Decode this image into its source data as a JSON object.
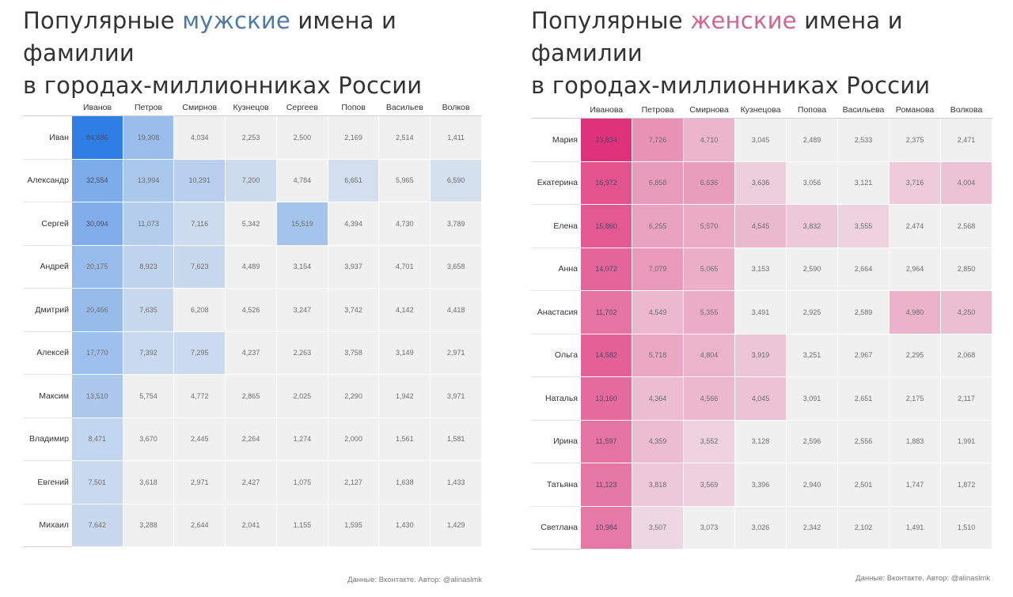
{
  "colors": {
    "male_accent": "#4e79a7",
    "female_accent": "#d1668f",
    "empty_cell": "#f0f0f0",
    "male_max": "#2f7ee6",
    "female_max": "#e0327a"
  },
  "chart_data": [
    {
      "type": "heatmap",
      "title_prefix": "Популярные ",
      "title_accent": "мужские",
      "title_rest": " имена и фамилии",
      "title_line2": "в городах-миллионниках России",
      "columns": [
        "Иванов",
        "Петров",
        "Смирнов",
        "Кузнецов",
        "Сергеев",
        "Попов",
        "Васильев",
        "Волков"
      ],
      "rows": [
        "Иван",
        "Александр",
        "Сергей",
        "Андрей",
        "Дмитрий",
        "Алексей",
        "Максим",
        "Владимир",
        "Евгений",
        "Михаил"
      ],
      "values": [
        [
          84886,
          19308,
          4034,
          2253,
          2500,
          2169,
          2514,
          1411
        ],
        [
          32554,
          13994,
          10291,
          7200,
          4784,
          6651,
          5965,
          6590
        ],
        [
          30094,
          11073,
          7116,
          5342,
          15519,
          4394,
          4730,
          3789
        ],
        [
          20175,
          8923,
          7623,
          4489,
          3154,
          3937,
          4701,
          3658
        ],
        [
          20466,
          7635,
          6208,
          4526,
          3247,
          3742,
          4142,
          4418
        ],
        [
          17770,
          7392,
          7295,
          4237,
          2263,
          3758,
          3149,
          2971
        ],
        [
          13510,
          5754,
          4772,
          2865,
          2025,
          2290,
          1942,
          3971
        ],
        [
          8471,
          3670,
          2445,
          2264,
          1274,
          2000,
          1561,
          1581
        ],
        [
          7501,
          3618,
          2971,
          2427,
          1075,
          2127,
          1638,
          1433
        ],
        [
          7642,
          3288,
          2644,
          2041,
          1155,
          1595,
          1430,
          1429
        ]
      ],
      "display": [
        [
          "84,886",
          "19,308",
          "4,034",
          "2,253",
          "2,500",
          "2,169",
          "2,514",
          "1,411"
        ],
        [
          "32,554",
          "13,994",
          "10,291",
          "7,200",
          "4,784",
          "6,651",
          "5,965",
          "6,590"
        ],
        [
          "30,094",
          "11,073",
          "7,116",
          "5,342",
          "15,519",
          "4,394",
          "4,730",
          "3,789"
        ],
        [
          "20,175",
          "8,923",
          "7,623",
          "4,489",
          "3,154",
          "3,937",
          "4,701",
          "3,658"
        ],
        [
          "20,466",
          "7,635",
          "6,208",
          "4,526",
          "3,247",
          "3,742",
          "4,142",
          "4,418"
        ],
        [
          "17,770",
          "7,392",
          "7,295",
          "4,237",
          "2,263",
          "3,758",
          "3,149",
          "2,971"
        ],
        [
          "13,510",
          "5,754",
          "4,772",
          "2,865",
          "2,025",
          "2,290",
          "1,942",
          "3,971"
        ],
        [
          "8,471",
          "3,670",
          "2,445",
          "2,264",
          "1,274",
          "2,000",
          "1,561",
          "1,581"
        ],
        [
          "7,501",
          "3,618",
          "2,971",
          "2,427",
          "1,075",
          "2,127",
          "1,638",
          "1,433"
        ],
        [
          "7,642",
          "3,288",
          "2,644",
          "2,041",
          "1,155",
          "1,595",
          "1,430",
          "1,429"
        ]
      ],
      "source": "Данные: Вконтакте. Автор: @alinaslmk"
    },
    {
      "type": "heatmap",
      "title_prefix": "Популярные ",
      "title_accent": "женские",
      "title_rest": " имена и фамилии",
      "title_line2": "в городах-миллионниках России",
      "columns": [
        "Иванова",
        "Петрова",
        "Смирнова",
        "Кузнецова",
        "Попова",
        "Васильева",
        "Романова",
        "Волкова"
      ],
      "rows": [
        "Мария",
        "Екатерина",
        "Елена",
        "Анна",
        "Анастасия",
        "Ольга",
        "Наталья",
        "Ирина",
        "Татьяна",
        "Светлана"
      ],
      "values": [
        [
          23834,
          7726,
          4710,
          3045,
          2489,
          2533,
          2375,
          2471
        ],
        [
          16972,
          6858,
          6636,
          3636,
          3056,
          3121,
          3716,
          4004
        ],
        [
          15860,
          6255,
          5570,
          4545,
          3832,
          3555,
          2474,
          2568
        ],
        [
          14072,
          7079,
          5065,
          3153,
          2590,
          2664,
          2964,
          2850
        ],
        [
          11702,
          4549,
          5355,
          3491,
          2925,
          2589,
          4980,
          4250
        ],
        [
          14582,
          5718,
          4804,
          3919,
          3251,
          2967,
          2295,
          2068
        ],
        [
          13160,
          4364,
          4566,
          4045,
          3091,
          2651,
          2175,
          2117
        ],
        [
          11597,
          4359,
          3552,
          3128,
          2596,
          2556,
          1883,
          1991
        ],
        [
          11123,
          3818,
          3569,
          3396,
          2940,
          2501,
          1747,
          1872
        ],
        [
          10984,
          3507,
          3073,
          3026,
          2342,
          2102,
          1491,
          1510
        ]
      ],
      "display": [
        [
          "23,834",
          "7,726",
          "4,710",
          "3,045",
          "2,489",
          "2,533",
          "2,375",
          "2,471"
        ],
        [
          "16,972",
          "6,858",
          "6,636",
          "3,636",
          "3,056",
          "3,121",
          "3,716",
          "4,004"
        ],
        [
          "15,860",
          "6,255",
          "5,570",
          "4,545",
          "3,832",
          "3,555",
          "2,474",
          "2,568"
        ],
        [
          "14,072",
          "7,079",
          "5,065",
          "3,153",
          "2,590",
          "2,664",
          "2,964",
          "2,850"
        ],
        [
          "11,702",
          "4,549",
          "5,355",
          "3,491",
          "2,925",
          "2,589",
          "4,980",
          "4,250"
        ],
        [
          "14,582",
          "5,718",
          "4,804",
          "3,919",
          "3,251",
          "2,967",
          "2,295",
          "2,068"
        ],
        [
          "13,160",
          "4,364",
          "4,566",
          "4,045",
          "3,091",
          "2,651",
          "2,175",
          "2,117"
        ],
        [
          "11,597",
          "4,359",
          "3,552",
          "3,128",
          "2,596",
          "2,556",
          "1,883",
          "1,991"
        ],
        [
          "11,123",
          "3,818",
          "3,569",
          "3,396",
          "2,940",
          "2,501",
          "1,747",
          "1,872"
        ],
        [
          "10,984",
          "3,507",
          "3,073",
          "3,026",
          "2,342",
          "2,102",
          "1,491",
          "1,510"
        ]
      ],
      "source": "Данные: Вконтакте. Автор: @alinaslmk"
    }
  ]
}
